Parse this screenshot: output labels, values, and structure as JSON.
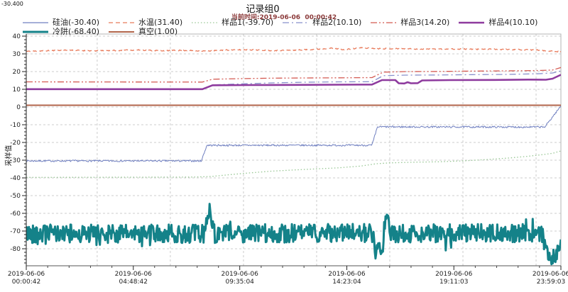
{
  "readout": "-30.400",
  "header": {
    "title": "记录组0",
    "subtitle": "当前时间:2019-06-06  00:00:42"
  },
  "legend": {
    "rows": [
      [
        {
          "series": "siliconeOil",
          "label": "硅油(-30.40)"
        },
        {
          "series": "waterTemp",
          "label": "水温(31.40)"
        },
        {
          "series": "sample1",
          "label": "样品1(-39.70)"
        },
        {
          "series": "sample2",
          "label": "样品2(10.10)"
        },
        {
          "series": "sample3",
          "label": "样品3(14.20)"
        },
        {
          "series": "sample4",
          "label": "样品4(10.10)"
        }
      ],
      [
        {
          "series": "coldTrap",
          "label": "冷阱(-68.40)"
        },
        {
          "series": "vacuum",
          "label": "真空(1.00)"
        }
      ]
    ]
  },
  "colors": {
    "grid": "#cccccc",
    "border": "#b4b4b4",
    "axis": "#333333",
    "tick_text": "#222222",
    "subtitle": "#8b3a3a"
  },
  "chart_data": {
    "type": "line",
    "title": "记录组0",
    "ylabel": "采样值",
    "ylim": [
      -80,
      40
    ],
    "y_ticks": [
      40,
      30,
      20,
      10,
      0,
      -10,
      -20,
      -30,
      -40,
      -50,
      -60,
      -70,
      -80
    ],
    "x_grid_hours": [
      3.18,
      6.46,
      9.74,
      13.02,
      16.3,
      19.58,
      22.86
    ],
    "x_ticklabels": [
      {
        "date": "2019-06-06",
        "time": "00:00:42",
        "hour": 0
      },
      {
        "date": "2019-06-06",
        "time": "04:48:42",
        "hour": 4.8
      },
      {
        "date": "2019-06-06",
        "time": "09:35:04",
        "hour": 9.573
      },
      {
        "date": "2019-06-06",
        "time": "14:23:04",
        "hour": 14.373
      },
      {
        "date": "2019-06-06",
        "time": "19:11:03",
        "hour": 19.173
      },
      {
        "date": "2019-06-06",
        "time": "23:59:03",
        "hour": 23.973
      }
    ],
    "series": [
      {
        "name": "siliconeOil",
        "label_cn": "硅油",
        "current": -30.4,
        "color": "#6f7fc0",
        "width": 1,
        "dash": "",
        "noise": 0.5,
        "seed": 7,
        "points": [
          [
            0,
            -30.4
          ],
          [
            7.85,
            -30.4
          ],
          [
            8.1,
            -21.6
          ],
          [
            15.5,
            -21.6
          ],
          [
            15.75,
            -11.2
          ],
          [
            23.25,
            -11.3
          ],
          [
            23.973,
            0.6
          ]
        ]
      },
      {
        "name": "waterTemp",
        "label_cn": "水温",
        "current": 31.4,
        "color": "#e87a5a",
        "width": 1.3,
        "dash": "6 4",
        "noise": 0.3,
        "seed": 11,
        "points": [
          [
            0,
            31.4
          ],
          [
            1,
            31.8
          ],
          [
            2,
            32.1
          ],
          [
            3,
            31.7
          ],
          [
            4,
            31.9
          ],
          [
            5,
            32.2
          ],
          [
            6,
            31.8
          ],
          [
            7,
            32.0
          ],
          [
            8,
            31.6
          ],
          [
            9,
            32.2
          ],
          [
            10,
            32.4
          ],
          [
            11,
            31.9
          ],
          [
            12,
            32.1
          ],
          [
            13,
            32.6
          ],
          [
            13.7,
            33.2
          ],
          [
            14.3,
            32.4
          ],
          [
            15,
            33.4
          ],
          [
            15.8,
            33.0
          ],
          [
            17,
            32.9
          ],
          [
            18,
            32.7
          ],
          [
            19,
            32.8
          ],
          [
            20,
            32.6
          ],
          [
            21,
            32.6
          ],
          [
            22,
            32.4
          ],
          [
            23,
            32.1
          ],
          [
            23.973,
            31.2
          ]
        ]
      },
      {
        "name": "sample1",
        "label_cn": "样品1",
        "current": -39.7,
        "color": "#99c795",
        "width": 1.3,
        "dash": "1.5 2.8",
        "noise": 0,
        "seed": 1,
        "points": [
          [
            0,
            -39.7
          ],
          [
            5,
            -39.6
          ],
          [
            7.5,
            -39.5
          ],
          [
            8.3,
            -39.2
          ],
          [
            9,
            -38.3
          ],
          [
            10,
            -37.2
          ],
          [
            11,
            -36.2
          ],
          [
            12,
            -35.5
          ],
          [
            13,
            -34.9
          ],
          [
            14,
            -34.3
          ],
          [
            15,
            -33.3
          ],
          [
            15.7,
            -32.0
          ],
          [
            16.3,
            -31.5
          ],
          [
            17.5,
            -31.1
          ],
          [
            18.5,
            -30.9
          ],
          [
            19.7,
            -30.3
          ],
          [
            20.7,
            -29.6
          ],
          [
            21.7,
            -28.7
          ],
          [
            22.5,
            -27.8
          ],
          [
            23.2,
            -26.8
          ],
          [
            23.6,
            -26.1
          ],
          [
            23.973,
            -24.8
          ]
        ]
      },
      {
        "name": "sample2",
        "label_cn": "样品2",
        "current": 10.1,
        "color": "#8890cc",
        "width": 1.3,
        "dash": "9 4 2 4",
        "noise": 0,
        "seed": 2,
        "points": [
          [
            0,
            10.1
          ],
          [
            7.9,
            10.1
          ],
          [
            8.35,
            12.5
          ],
          [
            9.5,
            13.0
          ],
          [
            11,
            13.6
          ],
          [
            12.5,
            14.0
          ],
          [
            14,
            14.2
          ],
          [
            15.5,
            14.3
          ],
          [
            16.0,
            17.7
          ],
          [
            17,
            18.0
          ],
          [
            18.5,
            18.1
          ],
          [
            20,
            18.3
          ],
          [
            21.5,
            18.4
          ],
          [
            23,
            18.8
          ],
          [
            23.6,
            19.2
          ],
          [
            23.973,
            20.4
          ]
        ]
      },
      {
        "name": "sample3",
        "label_cn": "样品3",
        "current": 14.2,
        "color": "#d45a52",
        "width": 1.3,
        "dash": "9 3 2 3 2 3",
        "noise": 0,
        "seed": 3,
        "points": [
          [
            0,
            14.2
          ],
          [
            7.9,
            14.1
          ],
          [
            8.35,
            15.7
          ],
          [
            9.5,
            16.0
          ],
          [
            11,
            16.3
          ],
          [
            12.5,
            16.4
          ],
          [
            14,
            16.5
          ],
          [
            15.5,
            16.6
          ],
          [
            16.0,
            19.7
          ],
          [
            17,
            20.0
          ],
          [
            18.5,
            20.1
          ],
          [
            20,
            20.3
          ],
          [
            21.5,
            20.4
          ],
          [
            23,
            20.6
          ],
          [
            23.6,
            20.9
          ],
          [
            23.973,
            22.3
          ]
        ]
      },
      {
        "name": "sample4",
        "label_cn": "样品4",
        "current": 10.1,
        "color": "#8e3b9e",
        "width": 2.6,
        "dash": "",
        "noise": 0,
        "seed": 4,
        "points": [
          [
            0,
            10.1
          ],
          [
            7.9,
            10.1
          ],
          [
            8.35,
            12.3
          ],
          [
            10,
            12.4
          ],
          [
            12,
            12.5
          ],
          [
            14,
            12.6
          ],
          [
            15.5,
            12.7
          ],
          [
            15.95,
            15.2
          ],
          [
            16.55,
            15.2
          ],
          [
            16.7,
            13.4
          ],
          [
            16.95,
            13.3
          ],
          [
            17.1,
            14.0
          ],
          [
            17.25,
            13.4
          ],
          [
            17.55,
            13.5
          ],
          [
            17.75,
            15.0
          ],
          [
            19,
            15.2
          ],
          [
            21,
            15.3
          ],
          [
            22.5,
            15.5
          ],
          [
            23.3,
            15.4
          ],
          [
            23.6,
            16.0
          ],
          [
            23.973,
            18.2
          ]
        ]
      },
      {
        "name": "coldTrap",
        "label_cn": "冷阱",
        "current": -68.4,
        "color": "#148289",
        "width": 3,
        "dash": "",
        "noise": 5.2,
        "seed": 42,
        "points": [
          [
            0,
            -71.5
          ],
          [
            8.0,
            -71.5
          ],
          [
            8.2,
            -56.5
          ],
          [
            8.45,
            -71.5
          ],
          [
            15.5,
            -71.0
          ],
          [
            15.7,
            -83.5
          ],
          [
            15.95,
            -79.0
          ],
          [
            16.15,
            -60.5
          ],
          [
            16.35,
            -71.5
          ],
          [
            23.1,
            -71.0
          ],
          [
            23.35,
            -83.0
          ],
          [
            23.6,
            -84.5
          ],
          [
            23.8,
            -82.0
          ],
          [
            23.973,
            -77.0
          ]
        ]
      },
      {
        "name": "vacuum",
        "label_cn": "真空",
        "current": 1.0,
        "color": "#b2654b",
        "width": 2,
        "dash": "",
        "noise": 0,
        "seed": 5,
        "points": [
          [
            0,
            1.0
          ],
          [
            23.973,
            1.0
          ]
        ]
      }
    ]
  }
}
